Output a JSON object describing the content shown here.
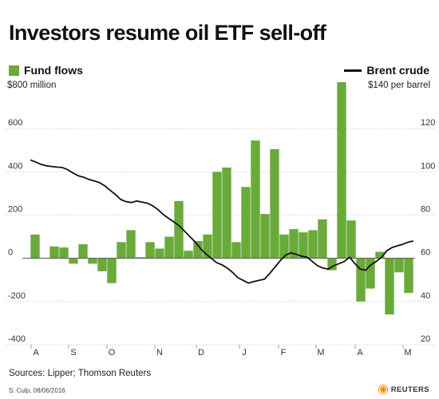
{
  "title": "Investors resume oil ETF sell-off",
  "legend": {
    "fund_flows": "Fund flows",
    "brent_crude": "Brent crude",
    "left_unit": "$800 million",
    "right_unit": "$140 per barrel"
  },
  "source": "Sources: Lipper; Thomson Reuters",
  "byline": "S. Culp, 08/06/2016",
  "logo": "REUTERS",
  "colors": {
    "bars": "#6aaa3a",
    "line": "#111111",
    "baseline": "#555555"
  },
  "chart_data": {
    "type": "bar",
    "left_axis": {
      "label": "$800 million",
      "ylim": [
        -400,
        800
      ],
      "ticks": [
        -400,
        -200,
        0,
        200,
        400,
        600
      ]
    },
    "right_axis": {
      "label": "$140 per barrel",
      "ylim": [
        20,
        140
      ],
      "ticks": [
        20,
        40,
        60,
        80,
        100,
        120
      ]
    },
    "x_ticks": [
      "A",
      "S",
      "O",
      "N",
      "D",
      "J",
      "F",
      "M",
      "A",
      "M"
    ],
    "series": [
      {
        "name": "Fund flows",
        "type": "bar",
        "axis": "left",
        "values": [
          110,
          0,
          55,
          50,
          -25,
          65,
          -25,
          -60,
          -115,
          75,
          130,
          5,
          75,
          45,
          100,
          265,
          35,
          80,
          110,
          400,
          420,
          75,
          330,
          545,
          205,
          505,
          110,
          135,
          120,
          130,
          180,
          -55,
          815,
          175,
          -200,
          -140,
          30,
          -260,
          -65,
          -160
        ]
      },
      {
        "name": "Brent crude",
        "type": "line",
        "axis": "right",
        "values": [
          105.5,
          104.5,
          103.5,
          102.8,
          102.5,
          102.2,
          102,
          101,
          99.5,
          98.2,
          97.5,
          96.5,
          95.8,
          95,
          93.5,
          91.5,
          89.5,
          87.2,
          86.2,
          85.8,
          86.5,
          86,
          85.5,
          84.3,
          82.5,
          80.2,
          78.5,
          76.8,
          75,
          72.5,
          70,
          67.5,
          64.5,
          62,
          60,
          58,
          57,
          55.5,
          53.5,
          51,
          49.8,
          48.5,
          49.2,
          49.8,
          50.3,
          53,
          56,
          59,
          61.5,
          62.5,
          61.8,
          61,
          60.5,
          58.5,
          56.5,
          55.5,
          55,
          56.5,
          57.5,
          58.5,
          60.5,
          57.5,
          55,
          54.5,
          57,
          58.5,
          60.5,
          63.5,
          65,
          65.8,
          66.5,
          67.5,
          68
        ]
      }
    ]
  }
}
